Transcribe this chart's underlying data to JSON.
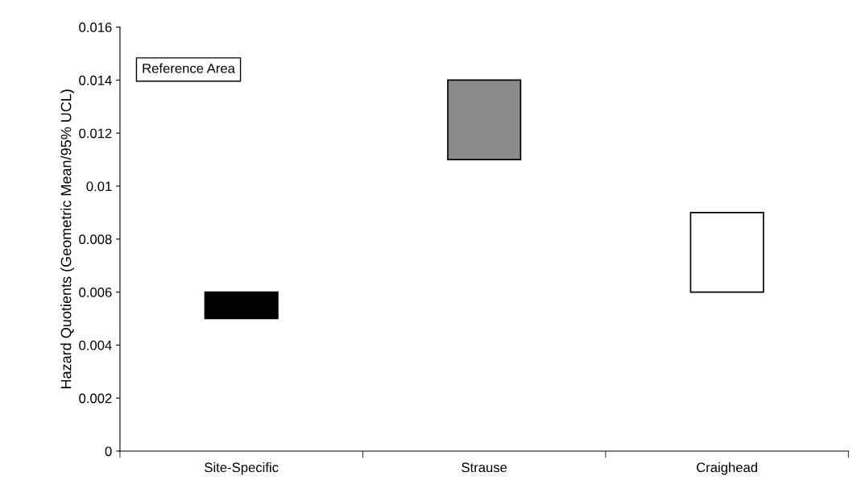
{
  "chart_data": {
    "type": "bar",
    "ylabel": "Hazard Quotients (Geometric Mean/95% UCL)",
    "categories": [
      "Site-Specific",
      "Strause",
      "Craighead"
    ],
    "base": [
      0.005,
      0.011,
      0.006
    ],
    "values": [
      0.001,
      0.003,
      0.003
    ],
    "colors": [
      "#000000",
      "#8a8a8a",
      "#ffffff"
    ],
    "ylim": [
      0,
      0.016
    ],
    "yticks": [
      0,
      0.002,
      0.004,
      0.006,
      0.008,
      0.01,
      0.012,
      0.014,
      0.016
    ],
    "annotations": [
      "Reference Area"
    ],
    "grid": false,
    "legend": false
  }
}
